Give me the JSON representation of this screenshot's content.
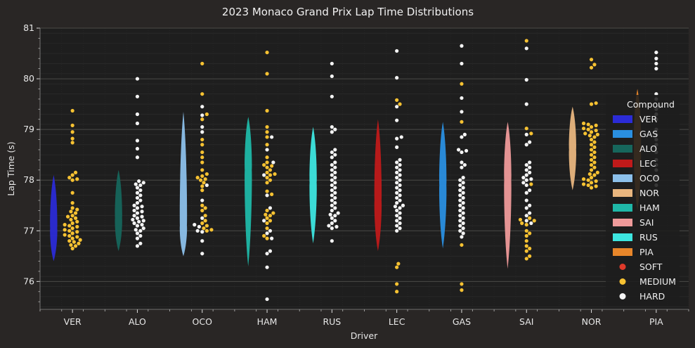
{
  "chart_data": {
    "type": "violin-swarm",
    "title": "2023 Monaco Grand Prix Lap Time Distributions",
    "xlabel": "Driver",
    "ylabel": "Lap Time (s)",
    "ylim": [
      75.45,
      81.0
    ],
    "yticks": [
      76,
      77,
      78,
      79,
      80,
      81
    ],
    "grid": true,
    "legend": {
      "title": "Compound",
      "placement": "right",
      "teams": [
        {
          "label": "VER",
          "color": "#2b2bd6"
        },
        {
          "label": "GAS",
          "color": "#2a8fe0"
        },
        {
          "label": "ALO",
          "color": "#16665c"
        },
        {
          "label": "LEC",
          "color": "#c01a1a"
        },
        {
          "label": "OCO",
          "color": "#8cc0ea"
        },
        {
          "label": "NOR",
          "color": "#e8b57e"
        },
        {
          "label": "HAM",
          "color": "#1fb8a8"
        },
        {
          "label": "SAI",
          "color": "#ef9a9a"
        },
        {
          "label": "RUS",
          "color": "#3de6e0"
        },
        {
          "label": "PIA",
          "color": "#e8862a"
        }
      ],
      "compounds": [
        {
          "label": "SOFT",
          "color": "#e03a2a"
        },
        {
          "label": "MEDIUM",
          "color": "#f7c232"
        },
        {
          "label": "HARD",
          "color": "#f4f4f4"
        }
      ]
    },
    "drivers": [
      {
        "name": "VER",
        "color": "#2b2bd6",
        "violin": [
          76.4,
          78.1,
          77.05
        ],
        "points": [
          {
            "c": "MEDIUM",
            "v": [
              79.37,
              79.08,
              78.95,
              78.82,
              78.74,
              78.15,
              78.1,
              78.05,
              78.02,
              78.0,
              77.75,
              77.55,
              77.45,
              77.42,
              77.38,
              77.35,
              77.3,
              77.28,
              77.25,
              77.22,
              77.18,
              77.15,
              77.12,
              77.1,
              77.08,
              77.05,
              77.02,
              77.0,
              76.98,
              76.95,
              76.92,
              76.9,
              76.88,
              76.85,
              76.82,
              76.8,
              76.78,
              76.75,
              76.72,
              76.7,
              76.65
            ]
          }
        ]
      },
      {
        "name": "ALO",
        "color": "#16665c",
        "violin": [
          76.6,
          78.2,
          77.25
        ],
        "points": [
          {
            "c": "HARD",
            "v": [
              80.0,
              79.65,
              79.3,
              79.12,
              78.78,
              78.62,
              78.45,
              77.98,
              77.95,
              77.92,
              77.9,
              77.85,
              77.8,
              77.75,
              77.7,
              77.65,
              77.6,
              77.55,
              77.5,
              77.48,
              77.45,
              77.4,
              77.38,
              77.35,
              77.3,
              77.28,
              77.25,
              77.22,
              77.2,
              77.18,
              77.15,
              77.12,
              77.1,
              77.05,
              77.02,
              77.0,
              76.95,
              76.9,
              76.85,
              76.75,
              76.7
            ]
          }
        ]
      },
      {
        "name": "OCO",
        "color": "#8cc0ea",
        "violin": [
          76.5,
          79.35,
          77.1
        ],
        "points": [
          {
            "c": "MEDIUM",
            "v": [
              80.3,
              79.7,
              79.3,
              79.2,
              78.8,
              78.7,
              78.55,
              78.45,
              78.35,
              78.2,
              78.12,
              78.08,
              78.05,
              78.02,
              78.0,
              77.95,
              77.88,
              77.8,
              77.5,
              77.45,
              77.4,
              77.3,
              77.2,
              77.15,
              77.1,
              77.05,
              77.02,
              77.0
            ],
            "HARDextra": []
          },
          {
            "c": "HARD",
            "v": [
              79.45,
              79.28,
              79.05,
              78.95,
              77.9,
              77.6,
              77.25,
              77.12,
              77.08,
              77.0,
              76.98,
              76.8,
              76.55
            ]
          }
        ]
      },
      {
        "name": "HAM",
        "color": "#1fb8a8",
        "violin": [
          76.3,
          79.25,
          78.2
        ],
        "points": [
          {
            "c": "MEDIUM",
            "v": [
              80.52,
              80.1,
              79.37,
              79.05,
              78.95,
              78.85,
              78.7,
              78.45,
              78.35,
              78.3,
              78.28,
              78.25,
              78.2,
              78.15,
              78.12,
              78.1,
              78.05,
              78.0,
              77.95,
              77.78,
              77.72,
              77.4,
              77.35,
              77.32,
              77.3,
              77.25,
              77.2,
              77.15,
              77.05,
              76.9,
              76.85
            ],
            "HARDextra": []
          },
          {
            "c": "HARD",
            "v": [
              78.85,
              78.6,
              78.35,
              78.1,
              77.7,
              77.45,
              77.2,
              77.0,
              76.95,
              76.85,
              76.6,
              76.55,
              76.28,
              75.65
            ]
          }
        ]
      },
      {
        "name": "RUS",
        "color": "#3de6e0",
        "violin": [
          76.75,
          79.05,
          77.95
        ],
        "points": [
          {
            "c": "HARD",
            "v": [
              80.3,
              80.05,
              79.65,
              79.05,
              79.0,
              78.95,
              78.6,
              78.55,
              78.5,
              78.45,
              78.35,
              78.3,
              78.25,
              78.2,
              78.15,
              78.1,
              78.05,
              78.0,
              77.95,
              77.9,
              77.85,
              77.8,
              77.75,
              77.7,
              77.65,
              77.6,
              77.55,
              77.5,
              77.45,
              77.4,
              77.35,
              77.32,
              77.3,
              77.25,
              77.2,
              77.15,
              77.1,
              77.08,
              77.05,
              76.8
            ]
          }
        ]
      },
      {
        "name": "LEC",
        "color": "#c01a1a",
        "violin": [
          76.6,
          79.2,
          77.6
        ],
        "points": [
          {
            "c": "HARD",
            "v": [
              80.55,
              80.02,
              79.45,
              79.18,
              78.85,
              78.82,
              78.65,
              78.4,
              78.35,
              78.3,
              78.25,
              78.2,
              78.15,
              78.1,
              78.05,
              78.0,
              77.95,
              77.9,
              77.85,
              77.8,
              77.75,
              77.7,
              77.65,
              77.6,
              77.55,
              77.5,
              77.48,
              77.45,
              77.4,
              77.35,
              77.3,
              77.25,
              77.2,
              77.15,
              77.1,
              77.05,
              77.0
            ]
          },
          {
            "c": "MEDIUM",
            "v": [
              79.58,
              79.5,
              76.35,
              76.28,
              75.95,
              75.8
            ]
          }
        ]
      },
      {
        "name": "GAS",
        "color": "#2a8fe0",
        "violin": [
          76.65,
          79.15,
          77.9
        ],
        "points": [
          {
            "c": "HARD",
            "v": [
              80.65,
              80.3,
              79.62,
              79.35,
              78.9,
              78.85,
              78.6,
              78.58,
              78.55,
              78.35,
              78.3,
              78.25,
              78.05,
              78.0,
              77.95,
              77.9,
              77.85,
              77.8,
              77.75,
              77.7,
              77.65,
              77.6,
              77.55,
              77.5,
              77.45,
              77.4,
              77.35,
              77.3,
              77.25,
              77.2,
              77.15,
              77.1,
              77.05,
              77.0,
              76.95,
              76.88
            ]
          },
          {
            "c": "MEDIUM",
            "v": [
              79.9,
              79.15,
              76.72,
              75.95,
              75.83
            ]
          }
        ]
      },
      {
        "name": "SAI",
        "color": "#ef9a9a",
        "violin": [
          76.25,
          79.15,
          78.0
        ],
        "points": [
          {
            "c": "HARD",
            "v": [
              80.6,
              79.98,
              79.5,
              78.9,
              78.75,
              78.7,
              78.35,
              78.3,
              78.25,
              78.2,
              78.15,
              78.1,
              78.05,
              78.02,
              78.0,
              77.95,
              77.9,
              77.8,
              77.75,
              77.6,
              77.5,
              77.45,
              77.35,
              77.3,
              77.2,
              77.15
            ],
            "HARDextra": []
          },
          {
            "c": "MEDIUM",
            "v": [
              80.75,
              79.02,
              78.92,
              77.92,
              77.25,
              77.22,
              77.2,
              77.15,
              77.12,
              77.0,
              76.95,
              76.9,
              76.8,
              76.7,
              76.65,
              76.6,
              76.5,
              76.45
            ]
          }
        ]
      },
      {
        "name": "NOR",
        "color": "#e8b57e",
        "violin": [
          77.8,
          79.45,
          78.6
        ],
        "points": [
          {
            "c": "MEDIUM",
            "v": [
              80.38,
              80.28,
              80.22,
              79.52,
              79.5,
              79.12,
              79.1,
              79.08,
              79.05,
              79.02,
              79.0,
              78.98,
              78.95,
              78.92,
              78.9,
              78.88,
              78.85,
              78.8,
              78.75,
              78.7,
              78.65,
              78.6,
              78.55,
              78.5,
              78.45,
              78.4,
              78.35,
              78.3,
              78.25,
              78.2,
              78.15,
              78.12,
              78.1,
              78.05,
              78.02,
              78.0,
              77.98,
              77.95,
              77.92,
              77.9,
              77.88,
              77.85
            ]
          }
        ]
      },
      {
        "name": "PIA",
        "color": "#e8862a",
        "violin": [
          77.4,
          79.8,
          78.7
        ],
        "points": [
          {
            "c": "HARD",
            "v": [
              80.52,
              80.4,
              80.3,
              80.2,
              79.7,
              79.6,
              79.45,
              79.4,
              79.3,
              79.2,
              79.0,
              78.9,
              78.8,
              78.7,
              78.55,
              78.4,
              78.3,
              78.2,
              78.05,
              77.9
            ]
          }
        ]
      }
    ]
  }
}
